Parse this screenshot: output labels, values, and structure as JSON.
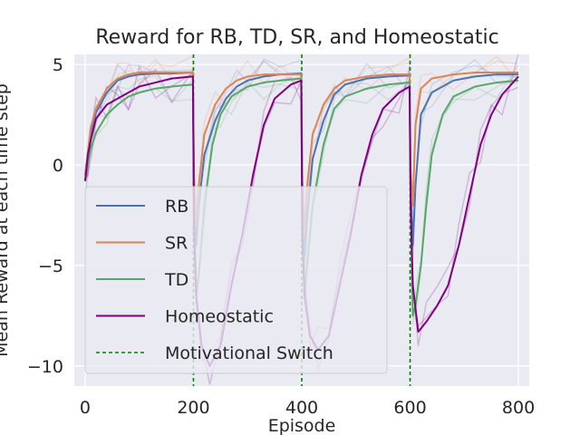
{
  "chart_data": {
    "type": "line",
    "title": "Reward for RB, TD, SR, and Homeostatic",
    "xlabel": "Episode",
    "ylabel": "Mean Reward at each time step",
    "xlim": [
      -20,
      820
    ],
    "ylim": [
      -11,
      5.5
    ],
    "xticks": [
      0,
      200,
      400,
      600,
      800
    ],
    "xtick_labels": [
      "0",
      "200",
      "400",
      "600",
      "800"
    ],
    "yticks": [
      5,
      0,
      -5,
      -10
    ],
    "ytick_labels": [
      "5",
      "0",
      "−5",
      "−10"
    ],
    "grid": true,
    "legend_position": "center-left",
    "switch_points": [
      200,
      400,
      600
    ],
    "colors": {
      "background": "#eaeaf2",
      "RB": "#4c72b0",
      "SR": "#dd8452",
      "TD": "#55a868",
      "Homeostatic": "#800080",
      "switch": "#008000"
    },
    "series": [
      {
        "name": "RB",
        "color": "#4c72b0",
        "x": [
          0,
          10,
          20,
          40,
          60,
          80,
          100,
          130,
          160,
          199,
          201,
          205,
          210,
          220,
          240,
          260,
          280,
          300,
          330,
          360,
          399,
          401,
          405,
          410,
          420,
          440,
          460,
          480,
          520,
          560,
          599,
          601,
          605,
          610,
          620,
          640,
          680,
          720,
          760,
          800
        ],
        "y": [
          -0.8,
          1.5,
          2.6,
          3.6,
          4.2,
          4.4,
          4.5,
          4.55,
          4.55,
          4.6,
          -1.2,
          -4.0,
          -2.0,
          0.5,
          2.2,
          3.3,
          3.9,
          4.2,
          4.4,
          4.5,
          4.55,
          -1.2,
          -4.5,
          -2.5,
          0.3,
          2.2,
          3.5,
          4.0,
          4.3,
          4.4,
          4.45,
          -1.0,
          -4.0,
          -1.0,
          2.5,
          3.6,
          4.2,
          4.4,
          4.5,
          4.5
        ]
      },
      {
        "name": "SR",
        "color": "#dd8452",
        "x": [
          0,
          10,
          20,
          40,
          60,
          80,
          100,
          130,
          160,
          199,
          201,
          205,
          210,
          220,
          240,
          260,
          280,
          300,
          330,
          360,
          399,
          401,
          405,
          410,
          420,
          440,
          460,
          480,
          520,
          560,
          599,
          601,
          605,
          610,
          620,
          640,
          680,
          720,
          760,
          800
        ],
        "y": [
          -0.5,
          1.8,
          2.8,
          3.8,
          4.3,
          4.5,
          4.6,
          4.6,
          4.6,
          4.6,
          -0.5,
          -3.0,
          -1.0,
          1.5,
          3.0,
          3.8,
          4.2,
          4.4,
          4.5,
          4.5,
          4.5,
          -0.8,
          -3.5,
          -1.0,
          1.5,
          3.0,
          3.8,
          4.2,
          4.4,
          4.5,
          4.5,
          -0.3,
          -2.0,
          2.0,
          3.8,
          4.3,
          4.5,
          4.6,
          4.6,
          4.6
        ]
      },
      {
        "name": "TD",
        "color": "#55a868",
        "x": [
          0,
          10,
          20,
          40,
          60,
          80,
          100,
          130,
          160,
          199,
          201,
          205,
          210,
          220,
          235,
          250,
          270,
          300,
          330,
          360,
          399,
          401,
          405,
          410,
          420,
          440,
          460,
          480,
          520,
          560,
          599,
          601,
          605,
          610,
          620,
          630,
          640,
          660,
          680,
          720,
          760,
          800
        ],
        "y": [
          -0.8,
          0.8,
          1.6,
          2.5,
          3.0,
          3.4,
          3.6,
          3.8,
          3.9,
          4.0,
          -2.0,
          -6.5,
          -5.5,
          -2.0,
          1.0,
          2.5,
          3.4,
          3.9,
          4.1,
          4.2,
          4.3,
          -2.0,
          -6.5,
          -5.0,
          -2.0,
          1.0,
          2.8,
          3.4,
          3.8,
          4.0,
          4.1,
          -2.0,
          -7.5,
          -7.0,
          -5.0,
          -2.0,
          0.5,
          2.5,
          3.4,
          3.9,
          4.1,
          4.2
        ]
      },
      {
        "name": "Homeostatic",
        "color": "#800080",
        "x": [
          0,
          5,
          10,
          20,
          40,
          60,
          80,
          100,
          130,
          160,
          199,
          201,
          205,
          215,
          230,
          250,
          270,
          290,
          310,
          330,
          350,
          380,
          399,
          401,
          405,
          415,
          430,
          450,
          470,
          490,
          510,
          530,
          550,
          580,
          599,
          601,
          605,
          615,
          630,
          650,
          670,
          690,
          710,
          730,
          750,
          770,
          800
        ],
        "y": [
          -0.8,
          0.5,
          1.2,
          2.3,
          3.0,
          3.3,
          3.6,
          3.9,
          4.1,
          4.3,
          4.4,
          -3.0,
          -6.5,
          -9.0,
          -10.0,
          -9.0,
          -6.0,
          -3.5,
          -0.5,
          2.0,
          3.3,
          4.0,
          4.2,
          -3.5,
          -6.5,
          -8.5,
          -9.2,
          -8.5,
          -6.0,
          -3.5,
          -0.5,
          1.5,
          2.8,
          3.6,
          3.9,
          -2.0,
          -6.0,
          -8.3,
          -7.8,
          -7.0,
          -6.0,
          -4.0,
          -1.5,
          1.0,
          2.5,
          3.5,
          4.4
        ]
      }
    ],
    "legend": [
      {
        "label": "RB",
        "color": "#4c72b0",
        "style": "solid"
      },
      {
        "label": "SR",
        "color": "#dd8452",
        "style": "solid"
      },
      {
        "label": "TD",
        "color": "#55a868",
        "style": "solid"
      },
      {
        "label": "Homeostatic",
        "color": "#800080",
        "style": "solid"
      },
      {
        "label": "Motivational Switch",
        "color": "#008000",
        "style": "dashed"
      }
    ]
  }
}
